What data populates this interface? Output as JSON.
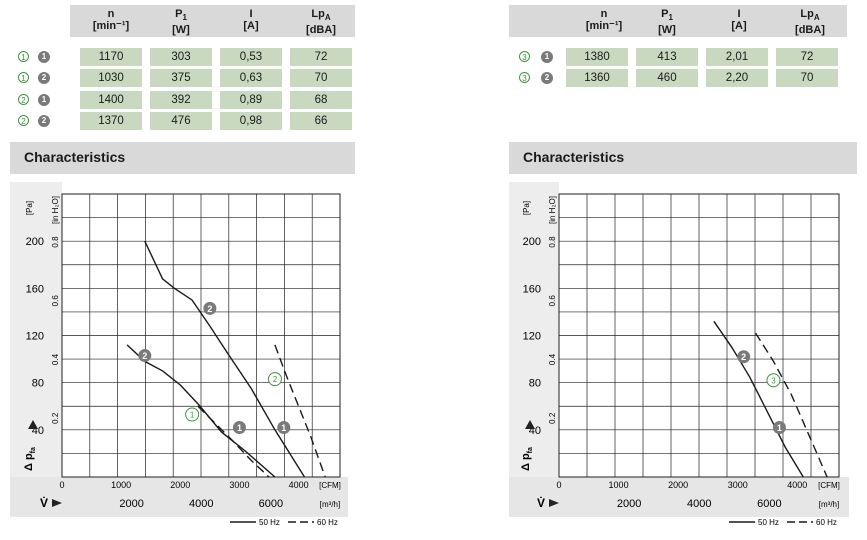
{
  "left": {
    "headers": [
      {
        "name": "n",
        "unit": "[min⁻¹]"
      },
      {
        "name": "P",
        "sub": "1",
        "unit": "[W]"
      },
      {
        "name": "I",
        "unit": "[A]"
      },
      {
        "name": "Lp",
        "sub": "A",
        "unit": "[dBA]"
      }
    ],
    "rows": [
      {
        "curve": "1",
        "mode": "1",
        "values": [
          "1170",
          "303",
          "0,53",
          "72"
        ]
      },
      {
        "curve": "1",
        "mode": "2",
        "values": [
          "1030",
          "375",
          "0,63",
          "70"
        ]
      },
      {
        "curve": "2",
        "mode": "1",
        "values": [
          "1400",
          "392",
          "0,89",
          "68"
        ]
      },
      {
        "curve": "2",
        "mode": "2",
        "values": [
          "1370",
          "476",
          "0,98",
          "66"
        ]
      }
    ],
    "section_title": "Characteristics"
  },
  "right": {
    "headers": [
      {
        "name": "n",
        "unit": "[min⁻¹]"
      },
      {
        "name": "P",
        "sub": "1",
        "unit": "[W]"
      },
      {
        "name": "I",
        "unit": "[A]"
      },
      {
        "name": "Lp",
        "sub": "A",
        "unit": "[dBA]"
      }
    ],
    "rows": [
      {
        "curve": "3",
        "mode": "1",
        "values": [
          "1380",
          "413",
          "2,01",
          "72"
        ]
      },
      {
        "curve": "3",
        "mode": "2",
        "values": [
          "1360",
          "460",
          "2,20",
          "70"
        ]
      }
    ],
    "section_title": "Characteristics"
  },
  "colors": {
    "table_header": "#d9d9d9",
    "cell": "#c8d9c0",
    "outline_badge": "#3a9a3a",
    "filled_badge": "#7a7a7a"
  },
  "chart_data": [
    {
      "type": "line",
      "ylabel_pa": "[Pa]",
      "ylabel_inh2o": "[in H₂O]",
      "delta_p_label": "Δ p",
      "delta_p_sub": "fa",
      "flow_symbol": "V̇",
      "x_unit_cfm": "[CFM]",
      "x_unit_m3h": "[m³/h]",
      "cfm_ticks": [
        0,
        1000,
        2000,
        3000,
        4000
      ],
      "m3h_ticks": [
        2000,
        4000,
        6000
      ],
      "pa_ticks": [
        40,
        80,
        120,
        160,
        200
      ],
      "inh2o_ticks": [
        "0.2",
        "0.4",
        "0.6",
        "0.8"
      ],
      "xlim_cfm": [
        0,
        4700
      ],
      "ylim_pa": [
        0,
        240
      ],
      "legend": [
        {
          "label": "50 Hz",
          "style": "solid"
        },
        {
          "label": "60 Hz",
          "style": "dashed"
        }
      ],
      "series": [
        {
          "curve": "2",
          "mode": "1",
          "style": "solid",
          "x": [
            1400,
            1700,
            1900,
            2200,
            2500,
            2800,
            3200,
            3600,
            4100
          ],
          "y": [
            200,
            168,
            160,
            150,
            128,
            105,
            75,
            40,
            0
          ]
        },
        {
          "curve": "1",
          "mode": "1",
          "style": "solid",
          "x": [
            1100,
            1400,
            1700,
            2000,
            2300,
            2700,
            3100,
            3600
          ],
          "y": [
            112,
            98,
            90,
            78,
            62,
            38,
            22,
            0
          ]
        },
        {
          "curve": "2",
          "mode": "2",
          "style": "dashed",
          "x": [
            3600,
            3800,
            4000,
            4200,
            4450
          ],
          "y": [
            112,
            85,
            60,
            35,
            0
          ]
        },
        {
          "curve": "1",
          "mode": "2",
          "style": "dashed",
          "x": [
            2300,
            2600,
            2900,
            3200,
            3500
          ],
          "y": [
            60,
            45,
            30,
            14,
            0
          ]
        }
      ],
      "markers": [
        {
          "label": "2",
          "kind": "filled",
          "x": 2500,
          "y": 143
        },
        {
          "label": "2",
          "kind": "filled",
          "x": 1400,
          "y": 103
        },
        {
          "label": "1",
          "kind": "filled",
          "x": 3000,
          "y": 42
        },
        {
          "label": "1",
          "kind": "filled",
          "x": 3750,
          "y": 42
        },
        {
          "label": "2",
          "kind": "outline",
          "x": 3600,
          "y": 83
        },
        {
          "label": "1",
          "kind": "outline",
          "x": 2200,
          "y": 53
        }
      ]
    },
    {
      "type": "line",
      "ylabel_pa": "[Pa]",
      "ylabel_inh2o": "[in H₂O]",
      "delta_p_label": "Δ p",
      "delta_p_sub": "fa",
      "flow_symbol": "V̇",
      "x_unit_cfm": "[CFM]",
      "x_unit_m3h": "[m³/h]",
      "cfm_ticks": [
        0,
        1000,
        2000,
        3000,
        4000
      ],
      "m3h_ticks": [
        2000,
        4000,
        6000
      ],
      "pa_ticks": [
        40,
        80,
        120,
        160,
        200
      ],
      "inh2o_ticks": [
        "0.2",
        "0.4",
        "0.6",
        "0.8"
      ],
      "xlim_cfm": [
        0,
        4700
      ],
      "ylim_pa": [
        0,
        240
      ],
      "legend": [
        {
          "label": "50 Hz",
          "style": "solid"
        },
        {
          "label": "60 Hz",
          "style": "dashed"
        }
      ],
      "series": [
        {
          "curve": "3",
          "mode": "1",
          "style": "solid",
          "x": [
            2600,
            2900,
            3200,
            3500,
            3800,
            4100
          ],
          "y": [
            132,
            110,
            85,
            55,
            25,
            0
          ]
        },
        {
          "curve": "3",
          "mode": "2",
          "style": "dashed",
          "x": [
            3300,
            3600,
            3900,
            4200,
            4500
          ],
          "y": [
            122,
            98,
            70,
            35,
            0
          ]
        }
      ],
      "markers": [
        {
          "label": "2",
          "kind": "filled",
          "x": 3100,
          "y": 102
        },
        {
          "label": "1",
          "kind": "filled",
          "x": 3700,
          "y": 42
        },
        {
          "label": "3",
          "kind": "outline",
          "x": 3600,
          "y": 82
        }
      ]
    }
  ]
}
